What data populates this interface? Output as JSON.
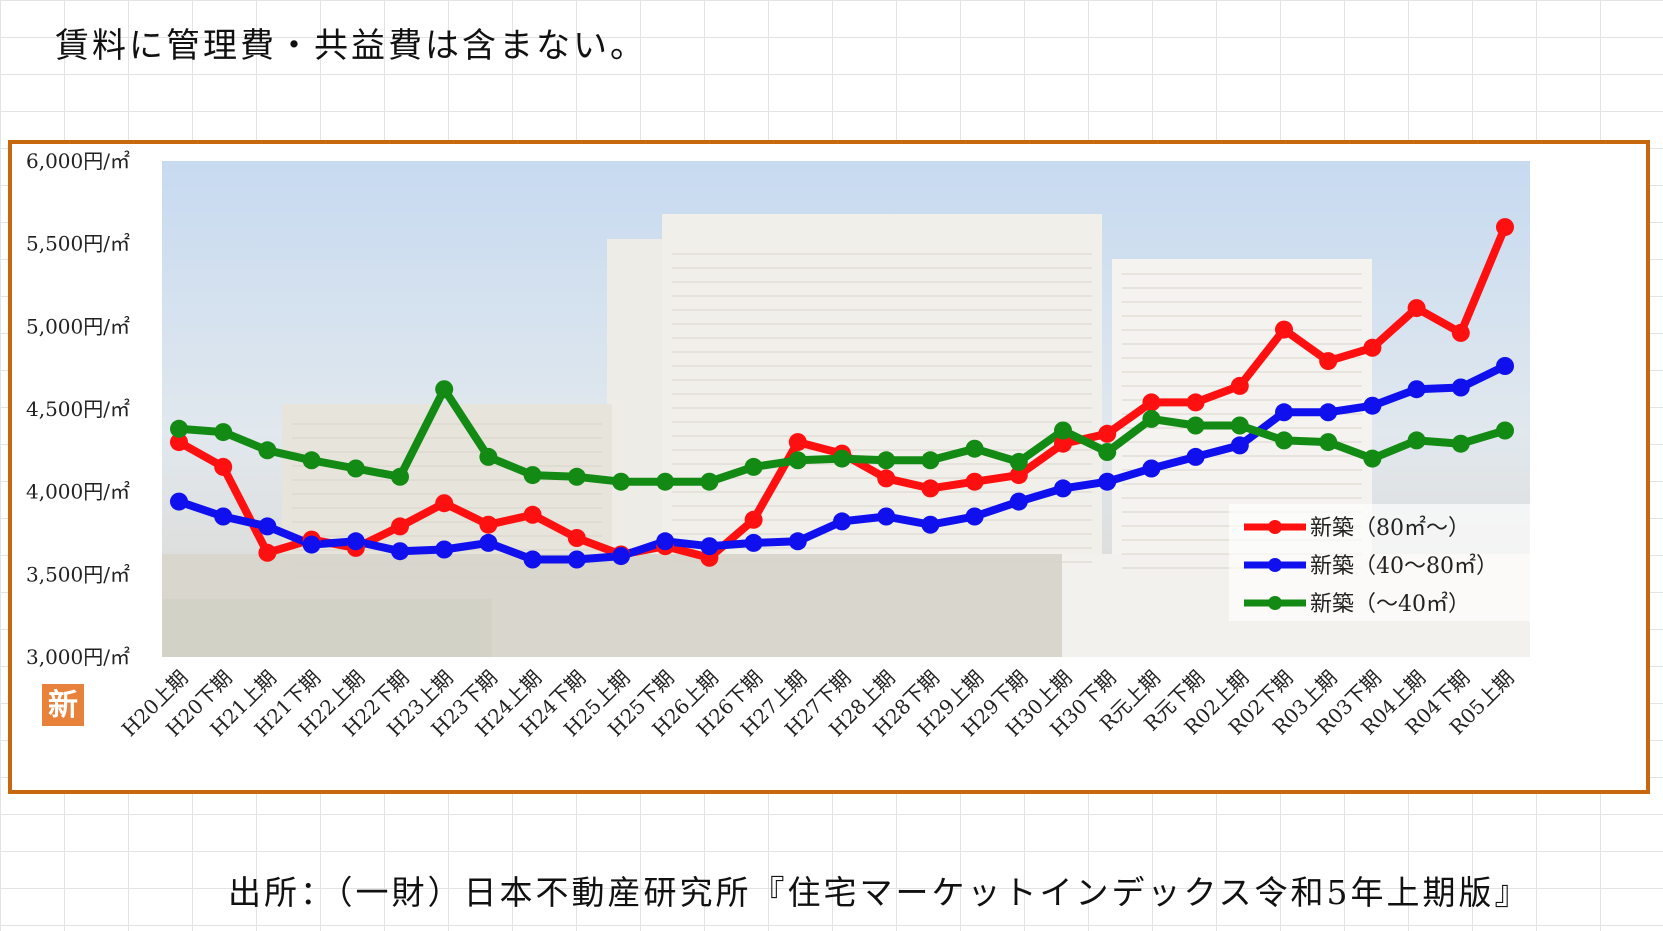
{
  "note": "賃料に管理費・共益費は含まない。",
  "source": "出所：（一財）日本不動産研究所『住宅マーケットインデックス令和5年上期版』",
  "badge": "新",
  "chart_data": {
    "type": "line",
    "title": "",
    "xlabel": "",
    "ylabel": "",
    "ylim": [
      3000,
      6000
    ],
    "y_ticks": [
      3000,
      3500,
      4000,
      4500,
      5000,
      5500,
      6000
    ],
    "y_tick_labels": [
      "3,000円/㎡",
      "3,500円/㎡",
      "4,000円/㎡",
      "4,500円/㎡",
      "5,000円/㎡",
      "5,500円/㎡",
      "6,000円/㎡"
    ],
    "categories": [
      "H20上期",
      "H20下期",
      "H21上期",
      "H21下期",
      "H22上期",
      "H22下期",
      "H23上期",
      "H23下期",
      "H24上期",
      "H24下期",
      "H25上期",
      "H25下期",
      "H26上期",
      "H26下期",
      "H27上期",
      "H27下期",
      "H28上期",
      "H28下期",
      "H29上期",
      "H29下期",
      "H30上期",
      "H30下期",
      "R元上期",
      "R元下期",
      "R02上期",
      "R02下期",
      "R03上期",
      "R03下期",
      "R04上期",
      "R04下期",
      "R05上期"
    ],
    "legend_position": "lower-right",
    "background": "photo of apartment buildings",
    "series": [
      {
        "name": "新築（80㎡～）",
        "color": "#ff1010",
        "values": [
          4300,
          4150,
          3630,
          3710,
          3660,
          3790,
          3930,
          3800,
          3860,
          3720,
          3620,
          3670,
          3600,
          3830,
          4300,
          4230,
          4080,
          4020,
          4060,
          4100,
          4290,
          4350,
          4540,
          4540,
          4640,
          4980,
          4790,
          4870,
          5110,
          4960,
          5600
        ]
      },
      {
        "name": "新築（40～80㎡）",
        "color": "#1010ee",
        "values": [
          3940,
          3850,
          3790,
          3680,
          3700,
          3640,
          3650,
          3690,
          3590,
          3590,
          3610,
          3700,
          3670,
          3690,
          3700,
          3820,
          3850,
          3800,
          3850,
          3940,
          4020,
          4060,
          4140,
          4210,
          4280,
          4480,
          4480,
          4520,
          4620,
          4630,
          4760
        ]
      },
      {
        "name": "新築（～40㎡）",
        "color": "#138a13",
        "values": [
          4380,
          4360,
          4250,
          4190,
          4140,
          4090,
          4620,
          4210,
          4100,
          4090,
          4060,
          4060,
          4060,
          4150,
          4190,
          4200,
          4190,
          4190,
          4260,
          4180,
          4370,
          4240,
          4440,
          4400,
          4400,
          4310,
          4300,
          4200,
          4310,
          4290,
          4370
        ]
      }
    ]
  }
}
